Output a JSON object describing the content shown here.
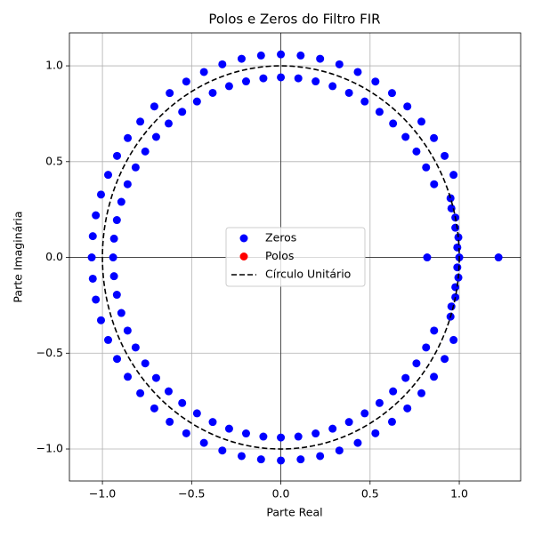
{
  "chart_data": {
    "type": "scatter",
    "title": "Polos e Zeros do Filtro FIR",
    "x_label": "Parte Real",
    "y_label": "Parte Imaginária",
    "xlim": [
      -1.185,
      1.344
    ],
    "ylim": [
      -1.167,
      1.172
    ],
    "xticks": [
      {
        "value": -1,
        "label": "−1.0"
      },
      {
        "value": -0.5,
        "label": "−0.5"
      },
      {
        "value": 0,
        "label": "0.0"
      },
      {
        "value": 0.5,
        "label": "0.5"
      },
      {
        "value": 1,
        "label": "1.0"
      }
    ],
    "yticks": [
      {
        "value": -1,
        "label": "−1.0"
      },
      {
        "value": -0.5,
        "label": "−0.5"
      },
      {
        "value": 0,
        "label": "0.0"
      },
      {
        "value": 0.5,
        "label": "0.5"
      },
      {
        "value": 1,
        "label": "1.0"
      }
    ],
    "grid": true,
    "zero_lines": true,
    "legend": "center",
    "series": [
      {
        "name": "Zeros",
        "color": "#0000ff",
        "x": [
          0.968,
          0.918,
          0.858,
          0.788,
          0.709,
          0.623,
          0.53,
          0.431,
          0.328,
          0.22,
          0.111,
          0,
          -0.111,
          -0.22,
          -0.328,
          -0.431,
          -0.53,
          -0.623,
          -0.709,
          -0.788,
          -0.858,
          -0.918,
          -0.968,
          -1.008,
          -1.037,
          -1.054,
          -1.06,
          -1.054,
          -1.037,
          -1.008,
          -0.968,
          -0.918,
          -0.858,
          -0.788,
          -0.709,
          -0.623,
          -0.53,
          -0.431,
          -0.328,
          -0.22,
          -0.111,
          0,
          0.111,
          0.22,
          0.328,
          0.431,
          0.53,
          0.623,
          0.709,
          0.788,
          0.858,
          0.918,
          0.968,
          0.859,
          0.814,
          0.76,
          0.699,
          0.629,
          0.553,
          0.47,
          0.382,
          0.29,
          0.195,
          0.098,
          0,
          -0.098,
          -0.195,
          -0.29,
          -0.382,
          -0.47,
          -0.553,
          -0.629,
          -0.699,
          -0.76,
          -0.814,
          -0.859,
          -0.894,
          -0.919,
          -0.935,
          -0.94,
          -0.935,
          -0.919,
          -0.894,
          -0.859,
          -0.814,
          -0.76,
          -0.699,
          -0.629,
          -0.553,
          -0.47,
          -0.382,
          -0.29,
          -0.195,
          -0.098,
          0,
          0.098,
          0.195,
          0.29,
          0.382,
          0.47,
          0.553,
          0.629,
          0.699,
          0.76,
          0.814,
          0.859,
          1,
          0.995,
          0.978,
          0.951,
          0.995,
          0.978,
          0.951,
          0.989,
          0.978,
          0.956,
          0.989,
          0.978,
          0.956,
          0.82,
          1.22
        ],
        "values": [
          0.431,
          0.53,
          0.623,
          0.709,
          0.788,
          0.858,
          0.918,
          0.968,
          1.008,
          1.037,
          1.054,
          1.06,
          1.054,
          1.037,
          1.008,
          0.968,
          0.918,
          0.858,
          0.788,
          0.709,
          0.623,
          0.53,
          0.431,
          0.328,
          0.22,
          0.111,
          0,
          -0.111,
          -0.22,
          -0.328,
          -0.431,
          -0.53,
          -0.623,
          -0.709,
          -0.788,
          -0.858,
          -0.918,
          -0.968,
          -1.008,
          -1.037,
          -1.054,
          -1.06,
          -1.054,
          -1.037,
          -1.008,
          -0.968,
          -0.918,
          -0.858,
          -0.788,
          -0.709,
          -0.623,
          -0.53,
          -0.431,
          0.382,
          0.47,
          0.553,
          0.629,
          0.699,
          0.76,
          0.814,
          0.859,
          0.894,
          0.919,
          0.935,
          0.94,
          0.935,
          0.919,
          0.894,
          0.859,
          0.814,
          0.76,
          0.699,
          0.629,
          0.553,
          0.47,
          0.382,
          0.29,
          0.195,
          0.098,
          0,
          -0.098,
          -0.195,
          -0.29,
          -0.382,
          -0.47,
          -0.553,
          -0.629,
          -0.699,
          -0.76,
          -0.814,
          -0.859,
          -0.894,
          -0.919,
          -0.935,
          -0.94,
          -0.935,
          -0.919,
          -0.894,
          -0.859,
          -0.814,
          -0.76,
          -0.699,
          -0.629,
          -0.553,
          -0.47,
          -0.382,
          0,
          0.105,
          0.208,
          0.309,
          -0.105,
          -0.208,
          -0.309,
          0.052,
          0.155,
          0.256,
          -0.052,
          -0.155,
          -0.256,
          0,
          0
        ]
      },
      {
        "name": "Polos",
        "color": "#ff0000",
        "x": [],
        "values": []
      },
      {
        "name": "Círculo Unitário",
        "color": "#000000",
        "shape": "circle",
        "radius": 1
      }
    ]
  }
}
